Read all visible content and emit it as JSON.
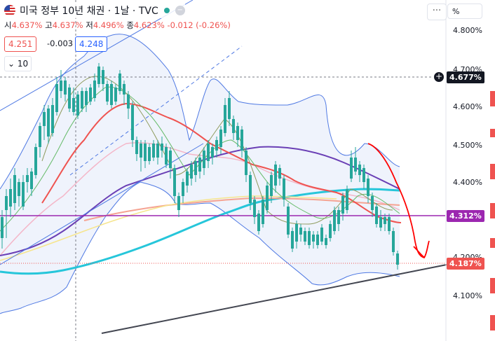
{
  "header": {
    "title": "미국 정부 10년 채권 · 1날 · TVC",
    "open_label": "시",
    "open_value": "4.637%",
    "high_label": "고",
    "high_value": "4.637%",
    "low_label": "저",
    "low_value": "4.496%",
    "close_label": "종",
    "close_value": "4.623%",
    "change": "-0.012 (-0.26%)"
  },
  "quote": {
    "sell": "4.251",
    "spread": "-0.003",
    "buy": "4.248"
  },
  "indicator": {
    "ma_label": "10"
  },
  "toolbar": {
    "more_label": "···",
    "scale_label": "%"
  },
  "axis": {
    "labels": [
      "4.800%",
      "4.700%",
      "4.600%",
      "4.500%",
      "4.400%",
      "4.200%",
      "4.100%"
    ]
  },
  "price_tags": {
    "crosshair": "4.677%",
    "level": "4.312%",
    "last": "4.187%"
  },
  "colors": {
    "up": "#26a69a",
    "down": "#ef5350",
    "band": "#4f79e3",
    "level_line": "#9c27b0",
    "annotation": "#ff0000",
    "trendline": "#434651"
  }
}
